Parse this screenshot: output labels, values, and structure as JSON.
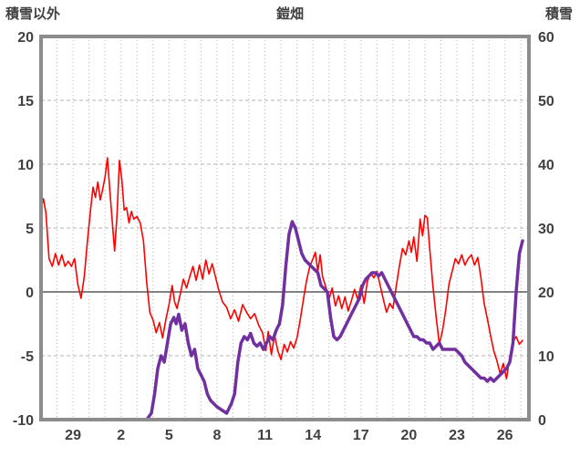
{
  "chart_data": {
    "type": "line",
    "title": "鎧畑",
    "ylabel_left": "積雪以外",
    "ylabel_right": "積雪",
    "left_axis": {
      "min": -10,
      "max": 20,
      "ticks": [
        20,
        15,
        10,
        5,
        0,
        -5,
        -10
      ]
    },
    "right_axis": {
      "min": 0,
      "max": 60,
      "ticks": [
        60,
        50,
        40,
        30,
        20,
        10,
        0
      ]
    },
    "x_axis": {
      "min": 27,
      "max": 57.5,
      "tick_positions": [
        29,
        32,
        35,
        38,
        41,
        44,
        47,
        50,
        53,
        56
      ],
      "tick_labels": [
        "29",
        "2",
        "5",
        "8",
        "11",
        "14",
        "17",
        "20",
        "23",
        "26"
      ]
    },
    "grid": {
      "vertical_every_day": true,
      "horizontal_at_left_ticks": true
    },
    "colors": {
      "frame": "#8c8c8c",
      "grid": "#b3b3b3",
      "zero_line": "#595959",
      "text": "#404040",
      "temperature": "#ff0000",
      "snow": "#7030a0"
    },
    "series": [
      {
        "name": "積雪以外",
        "axis": "left",
        "color": "#ff0000",
        "width": 1.6,
        "points": [
          [
            27.0,
            6.5
          ],
          [
            27.15,
            7.3
          ],
          [
            27.3,
            6.2
          ],
          [
            27.5,
            2.6
          ],
          [
            27.7,
            2.0
          ],
          [
            27.9,
            3.0
          ],
          [
            28.1,
            2.1
          ],
          [
            28.3,
            2.9
          ],
          [
            28.5,
            2.0
          ],
          [
            28.7,
            2.4
          ],
          [
            28.9,
            2.0
          ],
          [
            29.1,
            2.6
          ],
          [
            29.3,
            0.6
          ],
          [
            29.5,
            -0.5
          ],
          [
            29.7,
            1.2
          ],
          [
            29.9,
            4.0
          ],
          [
            30.1,
            6.5
          ],
          [
            30.25,
            8.2
          ],
          [
            30.4,
            7.4
          ],
          [
            30.55,
            8.6
          ],
          [
            30.7,
            7.2
          ],
          [
            30.85,
            8.0
          ],
          [
            31.0,
            9.0
          ],
          [
            31.15,
            10.5
          ],
          [
            31.3,
            8.0
          ],
          [
            31.45,
            5.5
          ],
          [
            31.6,
            3.2
          ],
          [
            31.75,
            6.0
          ],
          [
            31.9,
            10.3
          ],
          [
            32.05,
            8.8
          ],
          [
            32.2,
            6.4
          ],
          [
            32.35,
            6.6
          ],
          [
            32.5,
            5.4
          ],
          [
            32.65,
            6.3
          ],
          [
            32.8,
            5.7
          ],
          [
            33.0,
            5.9
          ],
          [
            33.2,
            5.4
          ],
          [
            33.4,
            4.0
          ],
          [
            33.6,
            0.8
          ],
          [
            33.8,
            -1.6
          ],
          [
            34.0,
            -2.2
          ],
          [
            34.2,
            -3.2
          ],
          [
            34.4,
            -2.4
          ],
          [
            34.6,
            -3.6
          ],
          [
            34.8,
            -2.2
          ],
          [
            35.0,
            -1.0
          ],
          [
            35.2,
            0.5
          ],
          [
            35.35,
            -0.8
          ],
          [
            35.5,
            -1.3
          ],
          [
            35.7,
            -0.2
          ],
          [
            35.9,
            1.0
          ],
          [
            36.1,
            0.3
          ],
          [
            36.3,
            1.2
          ],
          [
            36.5,
            2.0
          ],
          [
            36.7,
            0.9
          ],
          [
            36.9,
            2.1
          ],
          [
            37.1,
            1.0
          ],
          [
            37.3,
            2.5
          ],
          [
            37.5,
            1.4
          ],
          [
            37.7,
            2.2
          ],
          [
            37.9,
            1.2
          ],
          [
            38.1,
            0.2
          ],
          [
            38.35,
            -0.8
          ],
          [
            38.6,
            -1.2
          ],
          [
            38.85,
            -2.1
          ],
          [
            39.1,
            -1.4
          ],
          [
            39.35,
            -2.3
          ],
          [
            39.6,
            -1.0
          ],
          [
            39.85,
            -1.6
          ],
          [
            40.1,
            -2.1
          ],
          [
            40.35,
            -1.7
          ],
          [
            40.6,
            -2.6
          ],
          [
            40.85,
            -3.2
          ],
          [
            41.05,
            -4.6
          ],
          [
            41.2,
            -3.1
          ],
          [
            41.4,
            -4.9
          ],
          [
            41.6,
            -3.4
          ],
          [
            41.8,
            -4.6
          ],
          [
            42.0,
            -5.3
          ],
          [
            42.2,
            -4.1
          ],
          [
            42.4,
            -4.7
          ],
          [
            42.6,
            -3.9
          ],
          [
            42.8,
            -4.4
          ],
          [
            43.0,
            -3.6
          ],
          [
            43.2,
            -2.2
          ],
          [
            43.4,
            -0.6
          ],
          [
            43.6,
            0.9
          ],
          [
            43.8,
            2.0
          ],
          [
            44.0,
            2.6
          ],
          [
            44.15,
            3.1
          ],
          [
            44.3,
            1.6
          ],
          [
            44.45,
            2.9
          ],
          [
            44.6,
            1.2
          ],
          [
            44.8,
            0.4
          ],
          [
            45.0,
            -0.6
          ],
          [
            45.2,
            0.3
          ],
          [
            45.4,
            -1.1
          ],
          [
            45.6,
            -0.3
          ],
          [
            45.8,
            -1.3
          ],
          [
            46.0,
            -0.4
          ],
          [
            46.2,
            -1.5
          ],
          [
            46.4,
            -0.7
          ],
          [
            46.6,
            0.2
          ],
          [
            46.8,
            -0.6
          ],
          [
            47.0,
            0.5
          ],
          [
            47.2,
            -0.9
          ],
          [
            47.4,
            0.8
          ],
          [
            47.6,
            1.5
          ],
          [
            47.8,
            1.1
          ],
          [
            48.0,
            1.6
          ],
          [
            48.2,
            0.5
          ],
          [
            48.4,
            -0.6
          ],
          [
            48.6,
            -1.6
          ],
          [
            48.8,
            -0.9
          ],
          [
            49.0,
            -1.3
          ],
          [
            49.2,
            0.4
          ],
          [
            49.4,
            2.0
          ],
          [
            49.6,
            3.4
          ],
          [
            49.8,
            2.9
          ],
          [
            50.0,
            4.0
          ],
          [
            50.15,
            3.1
          ],
          [
            50.3,
            4.3
          ],
          [
            50.5,
            2.4
          ],
          [
            50.7,
            5.7
          ],
          [
            50.85,
            4.4
          ],
          [
            51.0,
            6.0
          ],
          [
            51.15,
            5.8
          ],
          [
            51.3,
            3.4
          ],
          [
            51.5,
            0.4
          ],
          [
            51.7,
            -2.0
          ],
          [
            51.9,
            -4.1
          ],
          [
            52.1,
            -3.0
          ],
          [
            52.3,
            -1.4
          ],
          [
            52.5,
            0.6
          ],
          [
            52.7,
            1.6
          ],
          [
            52.9,
            2.6
          ],
          [
            53.1,
            2.2
          ],
          [
            53.3,
            2.9
          ],
          [
            53.5,
            2.1
          ],
          [
            53.7,
            2.6
          ],
          [
            53.9,
            2.9
          ],
          [
            54.1,
            2.1
          ],
          [
            54.3,
            2.7
          ],
          [
            54.5,
            1.1
          ],
          [
            54.7,
            -0.9
          ],
          [
            54.9,
            -2.1
          ],
          [
            55.1,
            -3.4
          ],
          [
            55.3,
            -4.6
          ],
          [
            55.5,
            -5.4
          ],
          [
            55.7,
            -6.4
          ],
          [
            55.9,
            -5.6
          ],
          [
            56.1,
            -6.8
          ],
          [
            56.3,
            -5.1
          ],
          [
            56.5,
            -3.9
          ],
          [
            56.7,
            -3.5
          ],
          [
            56.9,
            -4.1
          ],
          [
            57.1,
            -3.8
          ]
        ]
      },
      {
        "name": "積雪",
        "axis": "right",
        "color": "#7030a0",
        "width": 3.5,
        "points": [
          [
            27.0,
            0
          ],
          [
            28.0,
            0
          ],
          [
            29.0,
            0
          ],
          [
            30.0,
            0
          ],
          [
            31.0,
            0
          ],
          [
            32.0,
            0
          ],
          [
            33.0,
            0
          ],
          [
            33.6,
            0
          ],
          [
            33.9,
            1
          ],
          [
            34.1,
            4
          ],
          [
            34.3,
            8
          ],
          [
            34.5,
            10
          ],
          [
            34.7,
            9
          ],
          [
            34.9,
            12
          ],
          [
            35.1,
            15
          ],
          [
            35.3,
            16
          ],
          [
            35.45,
            15
          ],
          [
            35.6,
            16.5
          ],
          [
            35.8,
            14
          ],
          [
            36.0,
            15
          ],
          [
            36.2,
            12
          ],
          [
            36.4,
            10
          ],
          [
            36.6,
            11
          ],
          [
            36.8,
            8
          ],
          [
            37.0,
            7
          ],
          [
            37.2,
            6
          ],
          [
            37.4,
            4
          ],
          [
            37.6,
            3
          ],
          [
            37.8,
            2.5
          ],
          [
            38.0,
            2
          ],
          [
            38.3,
            1.5
          ],
          [
            38.6,
            1
          ],
          [
            38.9,
            2.5
          ],
          [
            39.1,
            4
          ],
          [
            39.3,
            9
          ],
          [
            39.5,
            12
          ],
          [
            39.7,
            13
          ],
          [
            39.9,
            12.5
          ],
          [
            40.1,
            13.5
          ],
          [
            40.3,
            12
          ],
          [
            40.5,
            11.5
          ],
          [
            40.7,
            12
          ],
          [
            40.9,
            11
          ],
          [
            41.1,
            12
          ],
          [
            41.3,
            13
          ],
          [
            41.5,
            12.5
          ],
          [
            41.7,
            14
          ],
          [
            41.9,
            15
          ],
          [
            42.1,
            18
          ],
          [
            42.3,
            24
          ],
          [
            42.5,
            29
          ],
          [
            42.7,
            31
          ],
          [
            42.9,
            30
          ],
          [
            43.1,
            28
          ],
          [
            43.3,
            26
          ],
          [
            43.5,
            25
          ],
          [
            43.7,
            24.5
          ],
          [
            43.9,
            24
          ],
          [
            44.1,
            23.5
          ],
          [
            44.3,
            23
          ],
          [
            44.5,
            21
          ],
          [
            44.7,
            20.5
          ],
          [
            44.9,
            20
          ],
          [
            45.1,
            16
          ],
          [
            45.3,
            13
          ],
          [
            45.5,
            12.5
          ],
          [
            45.7,
            13
          ],
          [
            45.9,
            14
          ],
          [
            46.1,
            15
          ],
          [
            46.3,
            16
          ],
          [
            46.5,
            17
          ],
          [
            46.7,
            18
          ],
          [
            46.9,
            19
          ],
          [
            47.1,
            21
          ],
          [
            47.3,
            22
          ],
          [
            47.5,
            22.5
          ],
          [
            47.7,
            23
          ],
          [
            47.9,
            23
          ],
          [
            48.1,
            22.5
          ],
          [
            48.3,
            23
          ],
          [
            48.5,
            22
          ],
          [
            48.7,
            21
          ],
          [
            48.9,
            20
          ],
          [
            49.1,
            19
          ],
          [
            49.3,
            18
          ],
          [
            49.5,
            17
          ],
          [
            49.7,
            16
          ],
          [
            49.9,
            15
          ],
          [
            50.1,
            14
          ],
          [
            50.3,
            13
          ],
          [
            50.5,
            13
          ],
          [
            50.7,
            12.5
          ],
          [
            50.9,
            12.5
          ],
          [
            51.1,
            12
          ],
          [
            51.3,
            12
          ],
          [
            51.5,
            11
          ],
          [
            51.7,
            11.5
          ],
          [
            51.9,
            12
          ],
          [
            52.1,
            11
          ],
          [
            52.3,
            11
          ],
          [
            52.5,
            11
          ],
          [
            52.7,
            11
          ],
          [
            52.9,
            11
          ],
          [
            53.1,
            10.5
          ],
          [
            53.3,
            10
          ],
          [
            53.5,
            9
          ],
          [
            53.7,
            8.5
          ],
          [
            53.9,
            8
          ],
          [
            54.1,
            7.5
          ],
          [
            54.3,
            7
          ],
          [
            54.5,
            6.5
          ],
          [
            54.7,
            6.5
          ],
          [
            54.9,
            6
          ],
          [
            55.1,
            6.5
          ],
          [
            55.3,
            6
          ],
          [
            55.5,
            6.5
          ],
          [
            55.7,
            7
          ],
          [
            55.9,
            7.5
          ],
          [
            56.1,
            8
          ],
          [
            56.3,
            9
          ],
          [
            56.5,
            12
          ],
          [
            56.7,
            20
          ],
          [
            56.9,
            26
          ],
          [
            57.1,
            28
          ]
        ]
      }
    ]
  }
}
